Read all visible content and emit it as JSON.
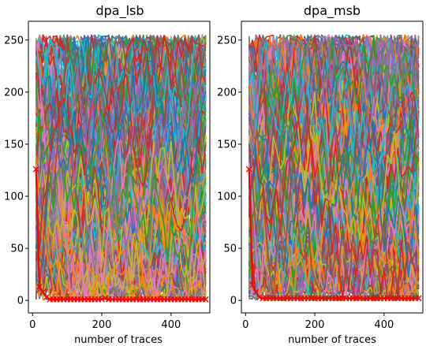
{
  "chart_data": [
    {
      "type": "line",
      "title": "dpa_lsb",
      "xlabel": "number of traces",
      "ylabel": "",
      "xlim": [
        -12,
        512
      ],
      "ylim": [
        -12,
        268
      ],
      "xticks": [
        0,
        200,
        400
      ],
      "yticks": [
        0,
        50,
        100,
        150,
        200,
        250
      ],
      "grid": false,
      "legend": "none",
      "series_note": "256 key-guess rank curves (one per key byte guess), x sampled every 10 traces from 10 to 500; highlighted correct-key curve in red with x markers",
      "highlight": {
        "name": "correct key",
        "color": "#ff0000",
        "marker": "x",
        "x": [
          10,
          20,
          30,
          40,
          50,
          60,
          70,
          80,
          90,
          100,
          110,
          120,
          130,
          140,
          150,
          160,
          170,
          180,
          190,
          200,
          210,
          220,
          230,
          240,
          250,
          260,
          270,
          280,
          290,
          300,
          310,
          320,
          330,
          340,
          350,
          360,
          370,
          380,
          390,
          400,
          410,
          420,
          430,
          440,
          450,
          460,
          470,
          480,
          490,
          500
        ],
        "y": [
          126,
          13,
          8,
          3,
          1,
          1,
          1,
          1,
          1,
          1,
          1,
          1,
          1,
          1,
          1,
          1,
          1,
          1,
          1,
          1,
          2,
          1,
          1,
          1,
          1,
          1,
          1,
          1,
          1,
          1,
          1,
          1,
          1,
          1,
          1,
          1,
          1,
          1,
          1,
          1,
          1,
          1,
          1,
          1,
          1,
          1,
          1,
          1,
          1,
          1
        ]
      }
    },
    {
      "type": "line",
      "title": "dpa_msb",
      "xlabel": "number of traces",
      "ylabel": "",
      "xlim": [
        -12,
        512
      ],
      "ylim": [
        -12,
        268
      ],
      "xticks": [
        0,
        200,
        400
      ],
      "yticks": [
        0,
        50,
        100,
        150,
        200,
        250
      ],
      "grid": false,
      "legend": "none",
      "series_note": "256 key-guess rank curves (one per key byte guess), x sampled every 10 traces from 10 to 500; highlighted correct-key curve in red with x markers",
      "highlight": {
        "name": "correct key",
        "color": "#ff0000",
        "marker": "x",
        "x": [
          10,
          20,
          30,
          40,
          50,
          60,
          70,
          80,
          90,
          100,
          110,
          120,
          130,
          140,
          150,
          160,
          170,
          180,
          190,
          200,
          210,
          220,
          230,
          240,
          250,
          260,
          270,
          280,
          290,
          300,
          310,
          320,
          330,
          340,
          350,
          360,
          370,
          380,
          390,
          400,
          410,
          420,
          430,
          440,
          450,
          460,
          470,
          480,
          490,
          500
        ],
        "y": [
          126,
          15,
          8,
          3,
          2,
          2,
          2,
          2,
          2,
          2,
          2,
          2,
          2,
          2,
          2,
          2,
          2,
          2,
          2,
          2,
          2,
          2,
          2,
          2,
          2,
          2,
          2,
          2,
          2,
          2,
          2,
          2,
          2,
          2,
          2,
          2,
          2,
          2,
          2,
          2,
          2,
          2,
          2,
          2,
          2,
          2,
          2,
          2,
          2,
          2
        ]
      }
    }
  ],
  "palette": [
    "#1f77b4",
    "#ff7f0e",
    "#2ca02c",
    "#d62728",
    "#9467bd",
    "#8c564b",
    "#e377c2",
    "#7f7f7f",
    "#bcbd22",
    "#17becf"
  ]
}
